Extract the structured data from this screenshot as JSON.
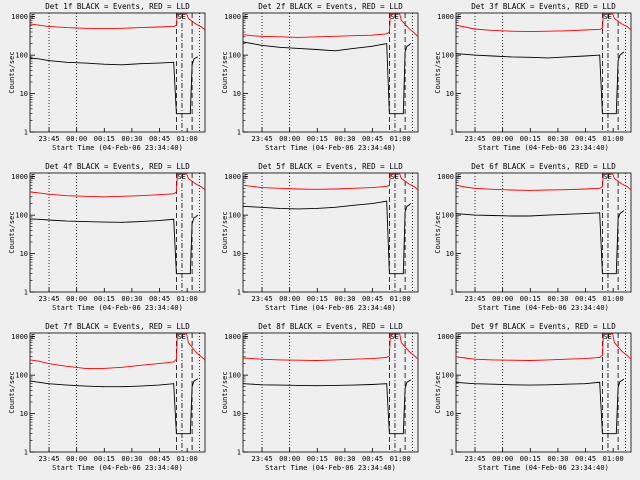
{
  "chart_data": [
    {
      "type": "line",
      "title": "Det 1f BLACK = Events, RED = LLD",
      "ylabel": "Counts/sec",
      "xlabel": "Start Time (04-Feb-06 23:34:40)",
      "x_tick_labels": [
        "23:45",
        "00:00",
        "00:15",
        "00:30",
        "00:45",
        "01:00"
      ],
      "y_tick_labels": [
        "1",
        "10",
        "100",
        "1000"
      ],
      "yscale": "log",
      "ylim": [
        1,
        1000
      ],
      "xlim_minutes_from_start": [
        0,
        95
      ],
      "region_labels": [
        "E",
        "SE"
      ],
      "series": [
        {
          "color": "#ff0000",
          "x": [
            0,
            5,
            10,
            20,
            30,
            40,
            50,
            60,
            70,
            78,
            79.5,
            80,
            85,
            86,
            90,
            93,
            95
          ],
          "y": [
            650,
            600,
            560,
            520,
            500,
            490,
            500,
            520,
            540,
            560,
            600,
            1200,
            1200,
            900,
            650,
            550,
            450
          ]
        },
        {
          "color": "#000000",
          "x": [
            0,
            5,
            10,
            20,
            30,
            40,
            50,
            60,
            70,
            78,
            79.5,
            87,
            88,
            89,
            90,
            91
          ],
          "y": [
            85,
            80,
            72,
            65,
            62,
            58,
            56,
            60,
            62,
            65,
            3,
            3,
            55,
            80,
            85,
            90
          ]
        }
      ]
    },
    {
      "type": "line",
      "title": "Det 2f BLACK = Events, RED = LLD",
      "ylabel": "Counts/sec",
      "xlabel": "Start Time (04-Feb-06 23:34:40)",
      "x_tick_labels": [
        "23:45",
        "00:00",
        "00:15",
        "00:30",
        "00:45",
        "01:00"
      ],
      "y_tick_labels": [
        "1",
        "10",
        "100",
        "1000"
      ],
      "yscale": "log",
      "ylim": [
        1,
        1000
      ],
      "xlim_minutes_from_start": [
        0,
        95
      ],
      "region_labels": [
        "E",
        "SE"
      ],
      "series": [
        {
          "color": "#ff0000",
          "x": [
            0,
            5,
            10,
            20,
            30,
            40,
            50,
            60,
            70,
            78,
            79.5,
            80,
            85,
            86,
            90,
            93,
            95
          ],
          "y": [
            340,
            320,
            310,
            300,
            290,
            300,
            310,
            320,
            330,
            360,
            400,
            1200,
            1200,
            800,
            500,
            380,
            300
          ]
        },
        {
          "color": "#000000",
          "x": [
            0,
            5,
            10,
            20,
            30,
            40,
            50,
            60,
            70,
            78,
            79.5,
            87,
            88,
            89,
            90,
            91
          ],
          "y": [
            220,
            200,
            180,
            160,
            150,
            140,
            130,
            150,
            170,
            200,
            3,
            3,
            120,
            170,
            180,
            200
          ]
        }
      ]
    },
    {
      "type": "line",
      "title": "Det 3f BLACK = Events, RED = LLD",
      "ylabel": "Counts/sec",
      "xlabel": "Start Time (04-Feb-06 23:34:40)",
      "x_tick_labels": [
        "23:45",
        "00:00",
        "00:15",
        "00:30",
        "00:45",
        "01:00"
      ],
      "y_tick_labels": [
        "1",
        "10",
        "100",
        "1000"
      ],
      "yscale": "log",
      "ylim": [
        1,
        1000
      ],
      "xlim_minutes_from_start": [
        0,
        95
      ],
      "region_labels": [
        "E",
        "SE"
      ],
      "series": [
        {
          "color": "#ff0000",
          "x": [
            0,
            5,
            10,
            20,
            30,
            40,
            50,
            60,
            70,
            78,
            79.5,
            80,
            85,
            86,
            90,
            93,
            95
          ],
          "y": [
            600,
            540,
            480,
            440,
            420,
            410,
            420,
            430,
            450,
            470,
            500,
            1200,
            1200,
            900,
            650,
            550,
            450
          ]
        },
        {
          "color": "#000000",
          "x": [
            0,
            5,
            10,
            20,
            30,
            40,
            50,
            60,
            70,
            78,
            79.5,
            87,
            88,
            89,
            90,
            91
          ],
          "y": [
            110,
            105,
            100,
            95,
            90,
            88,
            85,
            90,
            95,
            100,
            3,
            3,
            70,
            100,
            110,
            120
          ]
        }
      ]
    },
    {
      "type": "line",
      "title": "Det 4f BLACK = Events, RED = LLD",
      "ylabel": "Counts/sec",
      "xlabel": "Start Time (04-Feb-06 23:34:40)",
      "x_tick_labels": [
        "23:45",
        "00:00",
        "00:15",
        "00:30",
        "00:45",
        "01:00"
      ],
      "y_tick_labels": [
        "1",
        "10",
        "100",
        "1000"
      ],
      "yscale": "log",
      "ylim": [
        1,
        1000
      ],
      "xlim_minutes_from_start": [
        0,
        95
      ],
      "region_labels": [
        "E",
        "SE"
      ],
      "series": [
        {
          "color": "#ff0000",
          "x": [
            0,
            5,
            10,
            20,
            30,
            40,
            50,
            60,
            70,
            78,
            79.5,
            80,
            85,
            86,
            90,
            93,
            95
          ],
          "y": [
            400,
            380,
            350,
            320,
            310,
            300,
            310,
            320,
            340,
            360,
            400,
            1200,
            1200,
            900,
            650,
            550,
            450
          ]
        },
        {
          "color": "#000000",
          "x": [
            0,
            5,
            10,
            20,
            30,
            40,
            50,
            60,
            70,
            78,
            79.5,
            87,
            88,
            89,
            90,
            91
          ],
          "y": [
            80,
            78,
            75,
            70,
            68,
            66,
            65,
            68,
            72,
            78,
            3,
            3,
            60,
            85,
            90,
            100
          ]
        }
      ]
    },
    {
      "type": "line",
      "title": "Det 5f BLACK = Events, RED = LLD",
      "ylabel": "Counts/sec",
      "xlabel": "Start Time (04-Feb-06 23:34:40)",
      "x_tick_labels": [
        "23:45",
        "00:00",
        "00:15",
        "00:30",
        "00:45",
        "01:00"
      ],
      "y_tick_labels": [
        "1",
        "10",
        "100",
        "1000"
      ],
      "yscale": "log",
      "ylim": [
        1,
        1000
      ],
      "xlim_minutes_from_start": [
        0,
        95
      ],
      "region_labels": [
        "E",
        "SE"
      ],
      "series": [
        {
          "color": "#ff0000",
          "x": [
            0,
            5,
            10,
            20,
            30,
            40,
            50,
            60,
            70,
            78,
            79.5,
            80,
            85,
            86,
            90,
            93,
            95
          ],
          "y": [
            600,
            560,
            520,
            500,
            480,
            470,
            480,
            500,
            520,
            560,
            600,
            1200,
            1200,
            900,
            650,
            550,
            450
          ]
        },
        {
          "color": "#000000",
          "x": [
            0,
            5,
            10,
            20,
            30,
            40,
            50,
            60,
            70,
            78,
            79.5,
            87,
            88,
            89,
            90,
            91
          ],
          "y": [
            170,
            165,
            160,
            150,
            145,
            150,
            160,
            180,
            200,
            230,
            3,
            3,
            120,
            170,
            180,
            200
          ]
        }
      ]
    },
    {
      "type": "line",
      "title": "Det 6f BLACK = Events, RED = LLD",
      "ylabel": "Counts/sec",
      "xlabel": "Start Time (04-Feb-06 23:34:40)",
      "x_tick_labels": [
        "23:45",
        "00:00",
        "00:15",
        "00:30",
        "00:45",
        "01:00"
      ],
      "y_tick_labels": [
        "1",
        "10",
        "100",
        "1000"
      ],
      "yscale": "log",
      "ylim": [
        1,
        1000
      ],
      "xlim_minutes_from_start": [
        0,
        95
      ],
      "region_labels": [
        "E",
        "SE"
      ],
      "series": [
        {
          "color": "#ff0000",
          "x": [
            0,
            5,
            10,
            20,
            30,
            40,
            50,
            60,
            70,
            78,
            79.5,
            80,
            85,
            86,
            90,
            93,
            95
          ],
          "y": [
            600,
            540,
            500,
            470,
            450,
            440,
            450,
            460,
            480,
            500,
            550,
            1200,
            1200,
            900,
            650,
            550,
            450
          ]
        },
        {
          "color": "#000000",
          "x": [
            0,
            5,
            10,
            20,
            30,
            40,
            50,
            60,
            70,
            78,
            79.5,
            87,
            88,
            89,
            90,
            91
          ],
          "y": [
            110,
            105,
            100,
            98,
            95,
            95,
            100,
            105,
            110,
            115,
            3,
            3,
            80,
            110,
            120,
            130
          ]
        }
      ]
    },
    {
      "type": "line",
      "title": "Det 7f BLACK = Events, RED = LLD",
      "ylabel": "Counts/sec",
      "xlabel": "Start Time (04-Feb-06 23:34:40)",
      "x_tick_labels": [
        "23:45",
        "00:00",
        "00:15",
        "00:30",
        "00:45",
        "01:00"
      ],
      "y_tick_labels": [
        "1",
        "10",
        "100",
        "1000"
      ],
      "yscale": "log",
      "ylim": [
        1,
        1000
      ],
      "xlim_minutes_from_start": [
        0,
        95
      ],
      "region_labels": [
        "E",
        "SE"
      ],
      "series": [
        {
          "color": "#ff0000",
          "x": [
            0,
            5,
            10,
            20,
            30,
            40,
            50,
            60,
            70,
            78,
            79.5,
            80,
            85,
            86,
            90,
            93,
            95
          ],
          "y": [
            250,
            230,
            200,
            170,
            150,
            150,
            160,
            180,
            200,
            220,
            260,
            1200,
            1200,
            700,
            400,
            300,
            250
          ]
        },
        {
          "color": "#000000",
          "x": [
            0,
            5,
            10,
            20,
            30,
            40,
            50,
            60,
            70,
            78,
            79.5,
            87,
            88,
            89,
            90,
            91
          ],
          "y": [
            70,
            65,
            60,
            55,
            52,
            50,
            50,
            52,
            55,
            60,
            3,
            3,
            50,
            70,
            75,
            80
          ]
        }
      ]
    },
    {
      "type": "line",
      "title": "Det 8f BLACK = Events, RED = LLD",
      "ylabel": "Counts/sec",
      "xlabel": "Start Time (04-Feb-06 23:34:40)",
      "x_tick_labels": [
        "23:45",
        "00:00",
        "00:15",
        "00:30",
        "00:45",
        "01:00"
      ],
      "y_tick_labels": [
        "1",
        "10",
        "100",
        "1000"
      ],
      "yscale": "log",
      "ylim": [
        1,
        1000
      ],
      "xlim_minutes_from_start": [
        0,
        95
      ],
      "region_labels": [
        "E",
        "SE"
      ],
      "series": [
        {
          "color": "#ff0000",
          "x": [
            0,
            5,
            10,
            20,
            30,
            40,
            50,
            60,
            70,
            78,
            79.5,
            80,
            85,
            86,
            90,
            93,
            95
          ],
          "y": [
            280,
            270,
            260,
            250,
            245,
            240,
            250,
            260,
            270,
            290,
            320,
            1200,
            1200,
            700,
            420,
            320,
            260
          ]
        },
        {
          "color": "#000000",
          "x": [
            0,
            5,
            10,
            20,
            30,
            40,
            50,
            60,
            70,
            78,
            79.5,
            87,
            88,
            89,
            90,
            91
          ],
          "y": [
            60,
            58,
            56,
            55,
            54,
            53,
            54,
            55,
            57,
            60,
            3,
            3,
            45,
            65,
            70,
            75
          ]
        }
      ]
    },
    {
      "type": "line",
      "title": "Det 9f BLACK = Events, RED = LLD",
      "ylabel": "Counts/sec",
      "xlabel": "Start Time (04-Feb-06 23:34:40)",
      "x_tick_labels": [
        "23:45",
        "00:00",
        "00:15",
        "00:30",
        "00:45",
        "01:00"
      ],
      "y_tick_labels": [
        "1",
        "10",
        "100",
        "1000"
      ],
      "yscale": "log",
      "ylim": [
        1,
        1000
      ],
      "xlim_minutes_from_start": [
        0,
        95
      ],
      "region_labels": [
        "E",
        "SE"
      ],
      "series": [
        {
          "color": "#ff0000",
          "x": [
            0,
            5,
            10,
            20,
            30,
            40,
            50,
            60,
            70,
            78,
            79.5,
            80,
            85,
            86,
            90,
            93,
            95
          ],
          "y": [
            300,
            280,
            260,
            250,
            245,
            240,
            250,
            260,
            270,
            290,
            330,
            1200,
            1200,
            700,
            420,
            320,
            260
          ]
        },
        {
          "color": "#000000",
          "x": [
            0,
            5,
            10,
            20,
            30,
            40,
            50,
            60,
            70,
            78,
            79.5,
            87,
            88,
            89,
            90,
            91
          ],
          "y": [
            65,
            62,
            60,
            58,
            56,
            55,
            56,
            58,
            60,
            65,
            3,
            3,
            48,
            68,
            72,
            78
          ]
        }
      ]
    }
  ]
}
